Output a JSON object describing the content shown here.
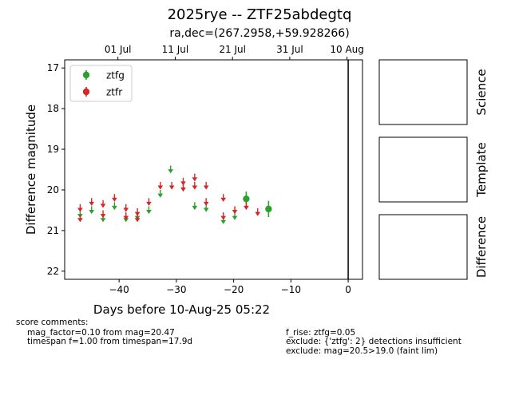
{
  "title": "2025rye -- ZTF25abdegtq",
  "subtitle": "ra,dec=(267.2958,+59.928266)",
  "chart_data": {
    "type": "scatter",
    "xlabel": "Days before 10-Aug-25 05:22",
    "ylabel": "Difference magnitude",
    "xlim": [
      -49.5,
      2.5
    ],
    "ylim": [
      22.2,
      16.8
    ],
    "x_ticks": [
      -40,
      -30,
      -20,
      -10,
      0
    ],
    "y_ticks": [
      17,
      18,
      19,
      20,
      21,
      22
    ],
    "top_axis_ticks": [
      {
        "label": "01 Jul",
        "x": -40.2
      },
      {
        "label": "11 Jul",
        "x": -30.2
      },
      {
        "label": "21 Jul",
        "x": -20.2
      },
      {
        "label": "31 Jul",
        "x": -10.2
      },
      {
        "label": "10 Aug",
        "x": -0.2
      }
    ],
    "vertical_line_x": 0,
    "legend": {
      "placement": "top-left",
      "entries": [
        "ztfg",
        "ztfr"
      ]
    },
    "series": [
      {
        "name": "ztfg",
        "color": "#2ca02c",
        "upper_limits": [
          [
            -46.8,
            20.6
          ],
          [
            -44.8,
            20.5
          ],
          [
            -42.8,
            20.7
          ],
          [
            -40.8,
            20.4
          ],
          [
            -38.8,
            20.7
          ],
          [
            -36.8,
            20.65
          ],
          [
            -34.8,
            20.5
          ],
          [
            -32.8,
            20.1
          ],
          [
            -31.0,
            19.5
          ],
          [
            -28.8,
            19.95
          ],
          [
            -26.8,
            20.4
          ],
          [
            -24.8,
            20.45
          ],
          [
            -21.8,
            20.75
          ],
          [
            -19.8,
            20.65
          ]
        ],
        "detections": [
          {
            "x": -17.8,
            "y": 20.22,
            "err": 0.18
          },
          {
            "x": -13.9,
            "y": 20.47,
            "err": 0.2
          }
        ]
      },
      {
        "name": "ztfr",
        "color": "#d62728",
        "upper_limits": [
          [
            -46.8,
            20.45
          ],
          [
            -46.8,
            20.7
          ],
          [
            -44.8,
            20.3
          ],
          [
            -42.8,
            20.35
          ],
          [
            -42.8,
            20.6
          ],
          [
            -40.8,
            20.2
          ],
          [
            -38.8,
            20.45
          ],
          [
            -38.8,
            20.65
          ],
          [
            -36.8,
            20.55
          ],
          [
            -36.8,
            20.7
          ],
          [
            -34.8,
            20.3
          ],
          [
            -32.8,
            19.9
          ],
          [
            -30.8,
            19.9
          ],
          [
            -28.8,
            19.8
          ],
          [
            -28.8,
            19.95
          ],
          [
            -26.8,
            19.7
          ],
          [
            -26.8,
            19.9
          ],
          [
            -24.8,
            19.9
          ],
          [
            -24.8,
            20.3
          ],
          [
            -21.8,
            20.2
          ],
          [
            -21.8,
            20.65
          ],
          [
            -19.8,
            20.5
          ],
          [
            -17.8,
            20.4
          ],
          [
            -15.8,
            20.55
          ]
        ],
        "detections": []
      }
    ]
  },
  "panels": [
    {
      "label": "Science"
    },
    {
      "label": "Template"
    },
    {
      "label": "Difference"
    }
  ],
  "comments": {
    "header": "score comments:",
    "left": [
      "mag_factor=0.10 from mag=20.47",
      "timespan f=1.00 from timespan=17.9d"
    ],
    "right": [
      "f_rise: ztfg=0.05",
      "exclude: {'ztfg': 2} detections insufficient",
      "exclude: mag=20.5>19.0 (faint lim)"
    ]
  }
}
